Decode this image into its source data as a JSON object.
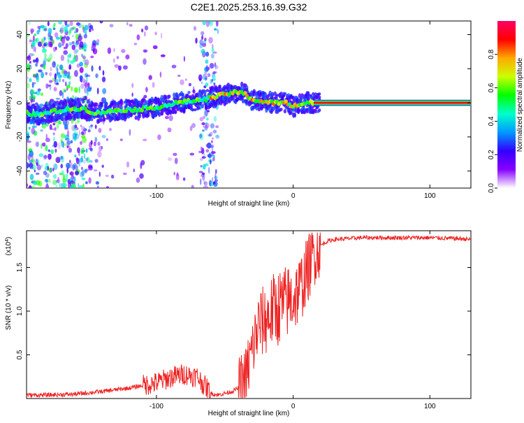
{
  "title": "C2E1.2025.253.16.39.G32",
  "chart_data": [
    {
      "type": "heatmap",
      "name": "spectrogram",
      "xlabel": "Height of straight line (km)",
      "ylabel": "Frequency (Hz)",
      "xlim": [
        -195,
        130
      ],
      "ylim": [
        -50,
        48
      ],
      "xticks": [
        -100,
        0,
        100
      ],
      "yticks": [
        -40,
        -20,
        0,
        20,
        40
      ],
      "xtick_labels": [
        "-100",
        "0",
        "100"
      ],
      "ytick_labels": [
        "-40",
        "-20",
        "0",
        "20",
        "40"
      ],
      "ridge": {
        "x": [
          -195,
          -185,
          -175,
          -165,
          -155,
          -145,
          -135,
          -125,
          -115,
          -105,
          -95,
          -85,
          -75,
          -65,
          -55,
          -45,
          -40,
          -35,
          -30,
          -25,
          -15,
          -5,
          0,
          10,
          20,
          60,
          100,
          130
        ],
        "y": [
          -6,
          -7,
          -5,
          -4,
          -3,
          -6,
          -5,
          -4,
          -4,
          -3,
          -2,
          0,
          1,
          2,
          4,
          6,
          6,
          5,
          2,
          1,
          0,
          0,
          -2,
          0,
          0,
          0,
          0,
          0
        ]
      },
      "colorbar": {
        "label": "Normalized spectral amplitude",
        "range": [
          0,
          1
        ],
        "ticks": [
          0.0,
          0.2,
          0.4,
          0.6,
          0.8
        ],
        "tick_labels": [
          "0.0",
          "0.2",
          "0.4",
          "0.6",
          "0.8"
        ],
        "colors": [
          "#ffffff",
          "#8800ff",
          "#3300ff",
          "#0099ff",
          "#00ffcc",
          "#00ff00",
          "#ccff00",
          "#ffaa00",
          "#ff0000",
          "#ff0066"
        ]
      }
    },
    {
      "type": "line",
      "name": "snr",
      "xlabel": "Height of straight line (km)",
      "ylabel": "SNR (10 * v/v)",
      "scale_label": "(x10",
      "scale_exp": "4",
      "scale_close": ")",
      "xlim": [
        -195,
        130
      ],
      "ylim": [
        0,
        1.92
      ],
      "xticks": [
        -100,
        0,
        100
      ],
      "yticks": [
        0.5,
        1.0,
        1.5
      ],
      "xtick_labels": [
        "-100",
        "0",
        "100"
      ],
      "ytick_labels": [
        "0.5",
        "1.0",
        "1.5"
      ],
      "color": "#ee2222",
      "series": {
        "x": [
          -195,
          -180,
          -160,
          -140,
          -120,
          -100,
          -90,
          -80,
          -70,
          -65,
          -60,
          -55,
          -50,
          -45,
          -40,
          -35,
          -30,
          -25,
          -20,
          -15,
          -10,
          -5,
          0,
          5,
          10,
          15,
          20,
          25,
          30,
          40,
          50,
          60,
          80,
          100,
          120,
          130
        ],
        "y": [
          0.04,
          0.04,
          0.05,
          0.08,
          0.12,
          0.18,
          0.24,
          0.28,
          0.25,
          0.15,
          0.06,
          0.04,
          0.06,
          0.08,
          0.12,
          0.22,
          0.55,
          0.85,
          0.9,
          1.0,
          1.05,
          1.1,
          1.15,
          1.25,
          1.45,
          1.65,
          1.75,
          1.8,
          1.82,
          1.83,
          1.84,
          1.84,
          1.84,
          1.84,
          1.83,
          1.82
        ]
      }
    }
  ]
}
